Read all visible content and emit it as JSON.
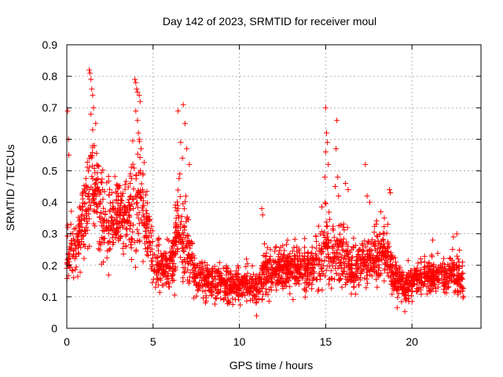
{
  "chart_data": {
    "type": "scatter",
    "title": "Day 142 of 2023, SRMTID for receiver moul",
    "xlabel": "GPS time / hours",
    "ylabel": "SRMTID / TECUs",
    "xlim": [
      0,
      24
    ],
    "ylim": [
      0,
      0.9
    ],
    "xticks": [
      0,
      5,
      10,
      15,
      20
    ],
    "yticks": [
      0,
      0.1,
      0.2,
      0.3,
      0.4,
      0.5,
      0.6,
      0.7,
      0.8,
      0.9
    ],
    "grid": true,
    "marker": "+",
    "marker_color": "#ff0000",
    "profile": [
      {
        "t": 0.0,
        "y": 0.23,
        "s": 0.07
      },
      {
        "t": 0.5,
        "y": 0.25,
        "s": 0.06
      },
      {
        "t": 1.0,
        "y": 0.36,
        "s": 0.09
      },
      {
        "t": 1.5,
        "y": 0.45,
        "s": 0.11
      },
      {
        "t": 2.0,
        "y": 0.38,
        "s": 0.11
      },
      {
        "t": 2.5,
        "y": 0.33,
        "s": 0.08
      },
      {
        "t": 3.0,
        "y": 0.38,
        "s": 0.08
      },
      {
        "t": 3.5,
        "y": 0.34,
        "s": 0.08
      },
      {
        "t": 4.0,
        "y": 0.45,
        "s": 0.14
      },
      {
        "t": 4.5,
        "y": 0.36,
        "s": 0.09
      },
      {
        "t": 5.0,
        "y": 0.22,
        "s": 0.06
      },
      {
        "t": 5.5,
        "y": 0.2,
        "s": 0.05
      },
      {
        "t": 6.0,
        "y": 0.19,
        "s": 0.05
      },
      {
        "t": 6.5,
        "y": 0.3,
        "s": 0.11
      },
      {
        "t": 7.0,
        "y": 0.26,
        "s": 0.09
      },
      {
        "t": 7.5,
        "y": 0.17,
        "s": 0.04
      },
      {
        "t": 8.0,
        "y": 0.15,
        "s": 0.04
      },
      {
        "t": 9.0,
        "y": 0.15,
        "s": 0.04
      },
      {
        "t": 10.0,
        "y": 0.14,
        "s": 0.04
      },
      {
        "t": 11.0,
        "y": 0.13,
        "s": 0.04
      },
      {
        "t": 11.5,
        "y": 0.18,
        "s": 0.05
      },
      {
        "t": 12.0,
        "y": 0.18,
        "s": 0.05
      },
      {
        "t": 13.0,
        "y": 0.19,
        "s": 0.05
      },
      {
        "t": 14.0,
        "y": 0.19,
        "s": 0.05
      },
      {
        "t": 14.5,
        "y": 0.21,
        "s": 0.06
      },
      {
        "t": 15.0,
        "y": 0.26,
        "s": 0.09
      },
      {
        "t": 15.5,
        "y": 0.22,
        "s": 0.07
      },
      {
        "t": 16.0,
        "y": 0.25,
        "s": 0.08
      },
      {
        "t": 16.5,
        "y": 0.19,
        "s": 0.05
      },
      {
        "t": 17.0,
        "y": 0.21,
        "s": 0.06
      },
      {
        "t": 18.0,
        "y": 0.22,
        "s": 0.06
      },
      {
        "t": 18.5,
        "y": 0.24,
        "s": 0.07
      },
      {
        "t": 19.0,
        "y": 0.16,
        "s": 0.04
      },
      {
        "t": 19.5,
        "y": 0.14,
        "s": 0.04
      },
      {
        "t": 20.0,
        "y": 0.15,
        "s": 0.04
      },
      {
        "t": 21.0,
        "y": 0.17,
        "s": 0.04
      },
      {
        "t": 22.0,
        "y": 0.16,
        "s": 0.04
      },
      {
        "t": 22.5,
        "y": 0.19,
        "s": 0.05
      },
      {
        "t": 23.0,
        "y": 0.14,
        "s": 0.04
      }
    ],
    "highlights": [
      {
        "t": 0.05,
        "y": 0.69
      },
      {
        "t": 0.1,
        "y": 0.6
      },
      {
        "t": 0.12,
        "y": 0.55
      },
      {
        "t": 1.3,
        "y": 0.82
      },
      {
        "t": 1.35,
        "y": 0.81
      },
      {
        "t": 1.4,
        "y": 0.79
      },
      {
        "t": 1.45,
        "y": 0.76
      },
      {
        "t": 1.5,
        "y": 0.74
      },
      {
        "t": 1.55,
        "y": 0.7
      },
      {
        "t": 1.4,
        "y": 0.68
      },
      {
        "t": 1.5,
        "y": 0.63
      },
      {
        "t": 1.6,
        "y": 0.58
      },
      {
        "t": 3.95,
        "y": 0.79
      },
      {
        "t": 4.0,
        "y": 0.78
      },
      {
        "t": 4.05,
        "y": 0.76
      },
      {
        "t": 4.1,
        "y": 0.75
      },
      {
        "t": 4.2,
        "y": 0.74
      },
      {
        "t": 4.25,
        "y": 0.72
      },
      {
        "t": 4.0,
        "y": 0.69
      },
      {
        "t": 4.1,
        "y": 0.66
      },
      {
        "t": 4.15,
        "y": 0.62
      },
      {
        "t": 4.2,
        "y": 0.6
      },
      {
        "t": 4.3,
        "y": 0.57
      },
      {
        "t": 6.45,
        "y": 0.69
      },
      {
        "t": 6.75,
        "y": 0.71
      },
      {
        "t": 6.85,
        "y": 0.65
      },
      {
        "t": 6.6,
        "y": 0.59
      },
      {
        "t": 6.95,
        "y": 0.57
      },
      {
        "t": 6.7,
        "y": 0.54
      },
      {
        "t": 7.1,
        "y": 0.52
      },
      {
        "t": 6.55,
        "y": 0.49
      },
      {
        "t": 11.0,
        "y": 0.04
      },
      {
        "t": 11.3,
        "y": 0.38
      },
      {
        "t": 11.35,
        "y": 0.36
      },
      {
        "t": 15.0,
        "y": 0.7
      },
      {
        "t": 15.05,
        "y": 0.62
      },
      {
        "t": 15.1,
        "y": 0.59
      },
      {
        "t": 15.0,
        "y": 0.56
      },
      {
        "t": 15.15,
        "y": 0.52
      },
      {
        "t": 14.95,
        "y": 0.48
      },
      {
        "t": 15.65,
        "y": 0.66
      },
      {
        "t": 15.6,
        "y": 0.57
      },
      {
        "t": 15.7,
        "y": 0.48
      },
      {
        "t": 15.55,
        "y": 0.45
      },
      {
        "t": 15.75,
        "y": 0.42
      },
      {
        "t": 16.15,
        "y": 0.46
      },
      {
        "t": 16.3,
        "y": 0.44
      },
      {
        "t": 17.3,
        "y": 0.52
      },
      {
        "t": 17.4,
        "y": 0.42
      },
      {
        "t": 17.55,
        "y": 0.4
      },
      {
        "t": 18.7,
        "y": 0.44
      },
      {
        "t": 18.75,
        "y": 0.43
      },
      {
        "t": 18.2,
        "y": 0.37
      },
      {
        "t": 18.4,
        "y": 0.35
      },
      {
        "t": 18.6,
        "y": 0.33
      },
      {
        "t": 21.2,
        "y": 0.28
      },
      {
        "t": 22.6,
        "y": 0.3
      },
      {
        "t": 22.4,
        "y": 0.29
      }
    ]
  }
}
